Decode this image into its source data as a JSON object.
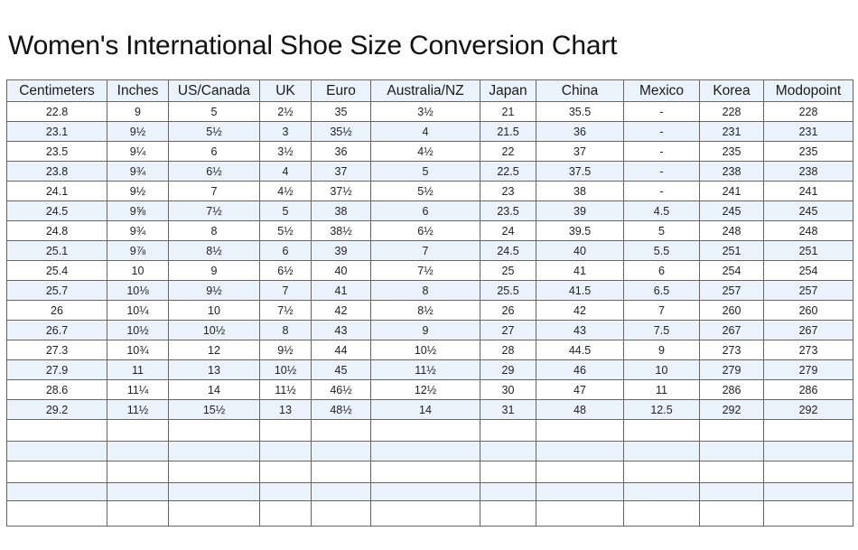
{
  "title": "Women's International Shoe Size Conversion Chart",
  "colors": {
    "header_bg": "#eaf2fb",
    "alt_row_bg": "#eaf2fb",
    "border": "#666666"
  },
  "table": {
    "headers": [
      "Centimeters",
      "Inches",
      "US/Canada",
      "UK",
      "Euro",
      "Australia/NZ",
      "Japan",
      "China",
      "Mexico",
      "Korea",
      "Modopoint"
    ],
    "rows": [
      [
        "22.8",
        "9",
        "5",
        "2½",
        "35",
        "3½",
        "21",
        "35.5",
        "-",
        "228",
        "228"
      ],
      [
        "23.1",
        "9½",
        "5½",
        "3",
        "35½",
        "4",
        "21.5",
        "36",
        "-",
        "231",
        "231"
      ],
      [
        "23.5",
        "9¼",
        "6",
        "3½",
        "36",
        "4½",
        "22",
        "37",
        "-",
        "235",
        "235"
      ],
      [
        "23.8",
        "9¾",
        "6½",
        "4",
        "37",
        "5",
        "22.5",
        "37.5",
        "-",
        "238",
        "238"
      ],
      [
        "24.1",
        "9½",
        "7",
        "4½",
        "37½",
        "5½",
        "23",
        "38",
        "-",
        "241",
        "241"
      ],
      [
        "24.5",
        "9⅝",
        "7½",
        "5",
        "38",
        "6",
        "23.5",
        "39",
        "4.5",
        "245",
        "245"
      ],
      [
        "24.8",
        "9¾",
        "8",
        "5½",
        "38½",
        "6½",
        "24",
        "39.5",
        "5",
        "248",
        "248"
      ],
      [
        "25.1",
        "9⅞",
        "8½",
        "6",
        "39",
        "7",
        "24.5",
        "40",
        "5.5",
        "251",
        "251"
      ],
      [
        "25.4",
        "10",
        "9",
        "6½",
        "40",
        "7½",
        "25",
        "41",
        "6",
        "254",
        "254"
      ],
      [
        "25.7",
        "10⅛",
        "9½",
        "7",
        "41",
        "8",
        "25.5",
        "41.5",
        "6.5",
        "257",
        "257"
      ],
      [
        "26",
        "10¼",
        "10",
        "7½",
        "42",
        "8½",
        "26",
        "42",
        "7",
        "260",
        "260"
      ],
      [
        "26.7",
        "10½",
        "10½",
        "8",
        "43",
        "9",
        "27",
        "43",
        "7.5",
        "267",
        "267"
      ],
      [
        "27.3",
        "10¾",
        "12",
        "9½",
        "44",
        "10½",
        "28",
        "44.5",
        "9",
        "273",
        "273"
      ],
      [
        "27.9",
        "11",
        "13",
        "10½",
        "45",
        "11½",
        "29",
        "46",
        "10",
        "279",
        "279"
      ],
      [
        "28.6",
        "11¼",
        "14",
        "11½",
        "46½",
        "12½",
        "30",
        "47",
        "11",
        "286",
        "286"
      ],
      [
        "29.2",
        "11½",
        "15½",
        "13",
        "48½",
        "14",
        "31",
        "48",
        "12.5",
        "292",
        "292"
      ]
    ],
    "empty_rows": 5
  }
}
